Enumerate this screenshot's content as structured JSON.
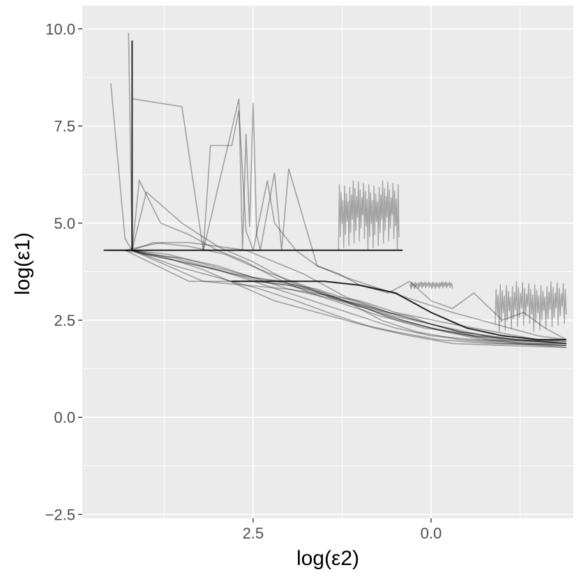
{
  "chart_data": {
    "type": "line",
    "title": "",
    "xlabel": "log(ε2)",
    "ylabel": "log(ε1)",
    "x_reversed": true,
    "xlim": [
      4.9,
      -2.0
    ],
    "ylim": [
      -2.6,
      10.6
    ],
    "x_ticks": [
      2.5,
      0.0
    ],
    "x_tick_labels": [
      "2.5",
      "0.0"
    ],
    "y_ticks": [
      10.0,
      7.5,
      5.0,
      2.5,
      0.0,
      -2.5
    ],
    "y_tick_labels": [
      "10.0",
      "7.5",
      "5.0",
      "2.5",
      "0.0",
      "−2.5"
    ],
    "grid": true,
    "legend": "none",
    "background": "#ebebeb",
    "grid_color": "#ffffff",
    "line_color": "#000000",
    "series": [
      {
        "x": [
          4.5,
          4.2,
          3.2,
          2.0,
          1.0,
          0.5,
          -0.3,
          -0.9,
          -1.5,
          -1.9
        ],
        "y": [
          4.3,
          4.3,
          3.5,
          3.3,
          3.0,
          2.7,
          2.4,
          2.2,
          2.0,
          1.95
        ]
      },
      {
        "x": [
          4.3,
          3.5,
          2.8,
          2.2,
          1.6,
          1.1,
          0.6,
          0.0,
          -0.6,
          -1.2,
          -1.9
        ],
        "y": [
          4.3,
          4.0,
          3.7,
          3.5,
          3.3,
          3.0,
          2.7,
          2.4,
          2.1,
          2.0,
          1.9
        ]
      },
      {
        "x": [
          4.2,
          3.6,
          3.0,
          2.4,
          1.9,
          1.3,
          0.8,
          0.3,
          -0.3,
          -1.0,
          -1.9
        ],
        "y": [
          4.3,
          3.9,
          3.6,
          3.3,
          3.0,
          2.6,
          2.3,
          2.1,
          1.9,
          1.85,
          1.8
        ]
      },
      {
        "x": [
          4.2,
          3.7,
          3.2,
          2.7,
          2.2,
          1.6,
          1.0,
          0.5,
          -0.1,
          -0.8,
          -1.9
        ],
        "y": [
          4.3,
          4.1,
          3.8,
          3.4,
          3.0,
          2.7,
          2.4,
          2.2,
          2.0,
          1.9,
          1.85
        ]
      },
      {
        "x": [
          4.3,
          3.4,
          2.5,
          2.0,
          1.5,
          1.1,
          0.7,
          0.2,
          -0.4,
          -1.0,
          -1.9
        ],
        "y": [
          4.3,
          3.5,
          3.5,
          3.4,
          3.2,
          2.9,
          2.5,
          2.2,
          2.0,
          1.9,
          1.85
        ]
      },
      {
        "x": [
          4.2,
          4.1,
          3.8,
          3.4,
          3.0,
          2.6,
          2.2,
          1.7,
          1.2,
          0.7,
          0.0,
          -0.7,
          -1.9
        ],
        "y": [
          4.3,
          6.1,
          5.0,
          4.7,
          4.3,
          4.0,
          3.6,
          3.2,
          2.9,
          2.6,
          2.3,
          2.0,
          1.85
        ]
      },
      {
        "x": [
          4.2,
          4.0,
          3.5,
          3.0,
          2.5,
          2.0,
          1.4,
          0.9,
          0.4,
          -0.2,
          -0.9,
          -1.9
        ],
        "y": [
          4.3,
          5.8,
          5.0,
          4.4,
          4.0,
          3.5,
          3.1,
          2.8,
          2.5,
          2.2,
          2.0,
          1.9
        ]
      },
      {
        "x": [
          4.2,
          3.9,
          3.4,
          2.9,
          2.4,
          1.8,
          1.2,
          0.6,
          0.0,
          -0.6,
          -1.2,
          -1.9
        ],
        "y": [
          4.3,
          4.5,
          4.4,
          4.2,
          3.8,
          3.4,
          3.0,
          2.6,
          2.3,
          2.1,
          2.0,
          1.95
        ]
      },
      {
        "x": [
          4.5,
          4.3,
          4.2,
          4.0,
          3.5,
          3.0,
          2.5,
          2.0,
          1.5,
          1.0,
          0.5,
          0.0,
          -0.6,
          -1.2,
          -1.9
        ],
        "y": [
          8.6,
          4.6,
          4.3,
          4.2,
          4.0,
          3.8,
          3.5,
          3.2,
          2.9,
          2.6,
          2.3,
          2.1,
          2.0,
          1.9,
          1.8
        ]
      },
      {
        "x": [
          4.25,
          4.2,
          4.0,
          3.5,
          3.0,
          2.5,
          2.0,
          1.5,
          1.0,
          0.5,
          0.0,
          -0.5,
          -1.0,
          -1.5,
          -1.9
        ],
        "y": [
          9.9,
          4.3,
          4.2,
          4.1,
          3.9,
          3.6,
          3.3,
          3.1,
          2.9,
          2.6,
          2.4,
          2.2,
          2.0,
          1.95,
          1.9
        ]
      },
      {
        "x": [
          4.2,
          3.5,
          3.2,
          2.7,
          2.65,
          2.6,
          2.55,
          2.5,
          2.45,
          2.4,
          2.2,
          2.1,
          2.0,
          1.6,
          1.2,
          0.7,
          0.2,
          -0.3,
          -0.9,
          -1.5,
          -1.9
        ],
        "y": [
          8.2,
          8.0,
          4.3,
          8.2,
          4.3,
          7.3,
          4.9,
          8.1,
          4.7,
          4.3,
          6.3,
          4.3,
          6.4,
          3.9,
          3.6,
          3.3,
          3.0,
          2.7,
          2.4,
          2.1,
          2.0
        ]
      },
      {
        "x": [
          3.2,
          3.1,
          2.8,
          2.7,
          2.6,
          2.5,
          2.3,
          2.2,
          1.9,
          1.6,
          1.3,
          1.0,
          0.6,
          0.3,
          0.0,
          -0.3,
          -0.6,
          -1.0,
          -1.3,
          -1.6,
          -1.9
        ],
        "y": [
          4.3,
          7.0,
          7.0,
          7.9,
          4.8,
          4.3,
          6.1,
          5.0,
          4.3,
          3.9,
          3.7,
          3.4,
          3.2,
          3.5,
          3.0,
          2.8,
          3.2,
          2.5,
          2.7,
          2.3,
          2.0
        ]
      },
      {
        "x": [
          4.3,
          3.8,
          3.4,
          3.0,
          2.6,
          2.2,
          1.8,
          1.5,
          1.2,
          0.9,
          0.6,
          0.3,
          0.0,
          -0.4,
          -0.8,
          -1.2,
          -1.6,
          -1.9
        ],
        "y": [
          4.3,
          4.5,
          4.5,
          4.4,
          4.3,
          4.0,
          3.7,
          3.4,
          3.1,
          2.9,
          2.7,
          2.6,
          2.4,
          2.2,
          2.1,
          2.0,
          1.95,
          1.9
        ]
      },
      {
        "x": [
          4.2,
          3.7,
          3.3,
          2.9,
          2.5,
          2.1,
          1.7,
          1.3,
          0.9,
          0.5,
          0.1,
          -0.3,
          -0.8,
          -1.3,
          -1.9
        ],
        "y": [
          4.3,
          4.2,
          4.0,
          3.8,
          3.6,
          3.5,
          3.3,
          3.0,
          2.8,
          2.5,
          2.3,
          2.2,
          2.0,
          1.9,
          1.9
        ]
      },
      {
        "x": [
          4.2,
          3.9,
          3.6,
          3.2,
          2.8,
          2.4,
          2.0,
          1.6,
          1.2,
          0.8,
          0.4,
          0.0,
          -0.4,
          -0.8,
          -1.2,
          -1.6,
          -1.9
        ],
        "y": [
          4.3,
          4.2,
          4.1,
          3.9,
          3.7,
          3.5,
          3.4,
          3.2,
          3.0,
          2.8,
          2.6,
          2.4,
          2.2,
          2.1,
          2.0,
          1.95,
          1.9
        ]
      }
    ],
    "emphasized_series": [
      {
        "x": [
          4.6,
          4.2,
          4.2,
          4.2,
          0.4
        ],
        "y": [
          4.3,
          4.3,
          9.7,
          4.3,
          4.3
        ]
      },
      {
        "x": [
          2.8,
          1.5,
          1.0,
          0.5,
          0.0,
          -0.5,
          -1.0,
          -1.5,
          -1.9
        ],
        "y": [
          3.5,
          3.5,
          3.4,
          3.2,
          2.7,
          2.3,
          2.1,
          2.0,
          2.0
        ]
      }
    ],
    "noisy_band_segments": [
      {
        "x_start": 1.3,
        "x_end": 0.45,
        "y_low": 4.3,
        "y_high": 6.1
      },
      {
        "x_start": 0.3,
        "x_end": -0.3,
        "y_low": 3.3,
        "y_high": 3.5
      },
      {
        "x_start": -0.9,
        "x_end": -1.9,
        "y_low": 2.2,
        "y_high": 3.5
      }
    ]
  }
}
